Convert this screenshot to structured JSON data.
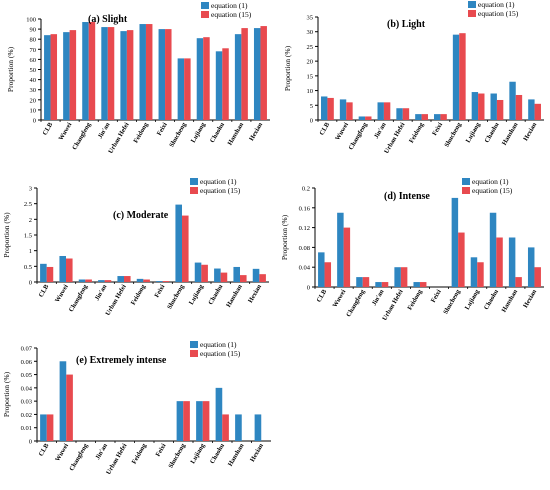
{
  "figure": {
    "background": "#ffffff"
  },
  "chart_data": [
    {
      "type": "bar",
      "panel": "(a)",
      "title": "(a)  Slight",
      "ylabel": "Proportion  (%)",
      "categories": [
        "CLB",
        "Wuwei",
        "Changfeng",
        "Jin'an",
        "Urban Hefei",
        "Feidong",
        "Feixi",
        "Shucheng",
        "Lujiang",
        "Chaohu",
        "Hanshan",
        "Hexian"
      ],
      "ylim": [
        0,
        100
      ],
      "yticks": [
        "0",
        "10",
        "20",
        "30",
        "40",
        "50",
        "60",
        "70",
        "80",
        "90",
        "100"
      ],
      "series": [
        {
          "name": "equation (1)",
          "color": "#2e86c1",
          "values": [
            84,
            87,
            97,
            92,
            88,
            95,
            90,
            61,
            81,
            68,
            85,
            91
          ]
        },
        {
          "name": "equation (15)",
          "color": "#e84a4f",
          "values": [
            85,
            89,
            97,
            92,
            89,
            95,
            90,
            61,
            82,
            71,
            91,
            93
          ]
        }
      ],
      "legend_position": "top-right",
      "grid": false
    },
    {
      "type": "bar",
      "panel": "(b)",
      "title": "(b)  Light",
      "ylabel": "Proportion  (%)",
      "categories": [
        "CLB",
        "Wuwei",
        "Changfeng",
        "Jin'an",
        "Urban Hefei",
        "Feidong",
        "Feixi",
        "Shucheng",
        "Lujiang",
        "Chaohu",
        "Hanshan",
        "Hexian"
      ],
      "ylim": [
        0,
        35
      ],
      "yticks": [
        "0",
        "5",
        "10",
        "15",
        "20",
        "25",
        "30",
        "35"
      ],
      "series": [
        {
          "name": "equation (1)",
          "color": "#2e86c1",
          "values": [
            8,
            7,
            1.2,
            6,
            4,
            2,
            2,
            29,
            9.5,
            9,
            13,
            7
          ]
        },
        {
          "name": "equation (15)",
          "color": "#e84a4f",
          "values": [
            7.5,
            6,
            1.2,
            6,
            4,
            2,
            2,
            29.5,
            9,
            6.8,
            8.5,
            5.5
          ]
        }
      ],
      "legend_position": "top-right",
      "grid": false
    },
    {
      "type": "bar",
      "panel": "(c)",
      "title": "(c)  Moderate",
      "ylabel": "Proportion  (%)",
      "categories": [
        "CLB",
        "Wuwei",
        "Changfeng",
        "Jin'an",
        "Urban Hefei",
        "Feidong",
        "Feixi",
        "Shucheng",
        "Lujiang",
        "Chaohu",
        "Hanshan",
        "Hexian"
      ],
      "ylim": [
        0,
        3
      ],
      "yticks": [
        "0",
        "0.5",
        "1",
        "1.5",
        "2",
        "2.5",
        "3"
      ],
      "series": [
        {
          "name": "equation (1)",
          "color": "#2e86c1",
          "values": [
            0.58,
            0.83,
            0.08,
            0.06,
            0.19,
            0.1,
            0.03,
            2.47,
            0.62,
            0.43,
            0.48,
            0.42
          ]
        },
        {
          "name": "equation (15)",
          "color": "#e84a4f",
          "values": [
            0.48,
            0.75,
            0.08,
            0.06,
            0.19,
            0.08,
            0.03,
            2.12,
            0.55,
            0.3,
            0.22,
            0.25
          ]
        }
      ],
      "legend_position": "top-right",
      "grid": false
    },
    {
      "type": "bar",
      "panel": "(d)",
      "title": "(d)  Intense",
      "ylabel": "Proportion  (%)",
      "categories": [
        "CLB",
        "Wuwei",
        "Changfeng",
        "Jin'an",
        "Urban Hefei",
        "Feidong",
        "Feixi",
        "Shucheng",
        "Lujiang",
        "Chaohu",
        "Hanshan",
        "Hexian"
      ],
      "ylim": [
        0,
        0.2
      ],
      "yticks": [
        "0",
        "0.04",
        "0.08",
        "0.12",
        "0.16",
        "0.2"
      ],
      "series": [
        {
          "name": "equation (1)",
          "color": "#2e86c1",
          "values": [
            0.07,
            0.15,
            0.02,
            0.01,
            0.04,
            0.01,
            0,
            0.18,
            0.06,
            0.15,
            0.1,
            0.08
          ]
        },
        {
          "name": "equation (15)",
          "color": "#e84a4f",
          "values": [
            0.05,
            0.12,
            0.02,
            0.01,
            0.04,
            0.01,
            0,
            0.11,
            0.05,
            0.1,
            0.02,
            0.04
          ]
        }
      ],
      "legend_position": "top-right",
      "grid": false
    },
    {
      "type": "bar",
      "panel": "(e)",
      "title": "(e)  Extremely intense",
      "ylabel": "Proportion  (%)",
      "categories": [
        "CLB",
        "Wuwei",
        "Changfeng",
        "Jin'an",
        "Urban Hefei",
        "Feidong",
        "Feixi",
        "Shucheng",
        "Lujiang",
        "Chaohu",
        "Hanshan",
        "Hexian"
      ],
      "ylim": [
        0,
        0.07
      ],
      "yticks": [
        "0",
        "0.01",
        "0.02",
        "0.03",
        "0.04",
        "0.05",
        "0.06",
        "0.07"
      ],
      "series": [
        {
          "name": "equation (1)",
          "color": "#2e86c1",
          "values": [
            0.02,
            0.06,
            0,
            0,
            0,
            0,
            0,
            0.03,
            0.03,
            0.04,
            0.02,
            0.02
          ]
        },
        {
          "name": "equation (15)",
          "color": "#e84a4f",
          "values": [
            0.02,
            0.05,
            0,
            0,
            0,
            0,
            0,
            0.03,
            0.03,
            0.02,
            0,
            0
          ]
        }
      ],
      "legend_position": "top-right",
      "grid": false
    }
  ]
}
